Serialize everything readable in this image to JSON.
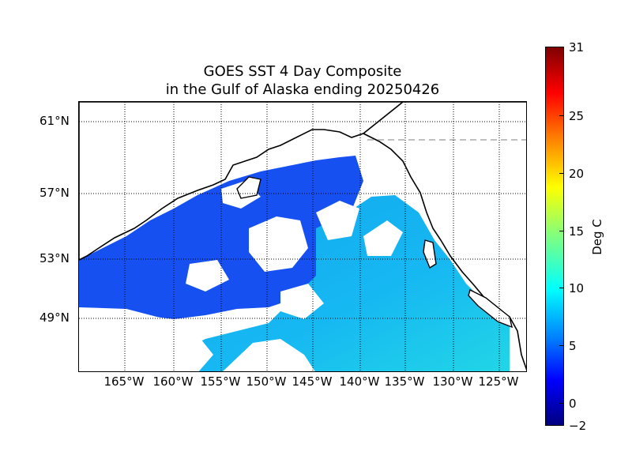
{
  "title_line1": "GOES SST 4 Day Composite",
  "title_line2": "in the Gulf of Alaska ending 20250426",
  "lat_labels": [
    "61°N",
    "57°N",
    "53°N",
    "49°N"
  ],
  "lon_labels": [
    "165°W",
    "160°W",
    "155°W",
    "150°W",
    "145°W",
    "140°W",
    "135°W",
    "130°W",
    "125°W"
  ],
  "colorbar": {
    "label": "Deg C",
    "min": -2,
    "max": 31,
    "ticks": [
      "31",
      "25",
      "20",
      "15",
      "10",
      "5",
      "0",
      "−2"
    ]
  },
  "colors": {
    "coast": "#000000",
    "grid": "#000000",
    "warm_sst": "#20c0f0",
    "cold_sst": "#1040f0"
  }
}
